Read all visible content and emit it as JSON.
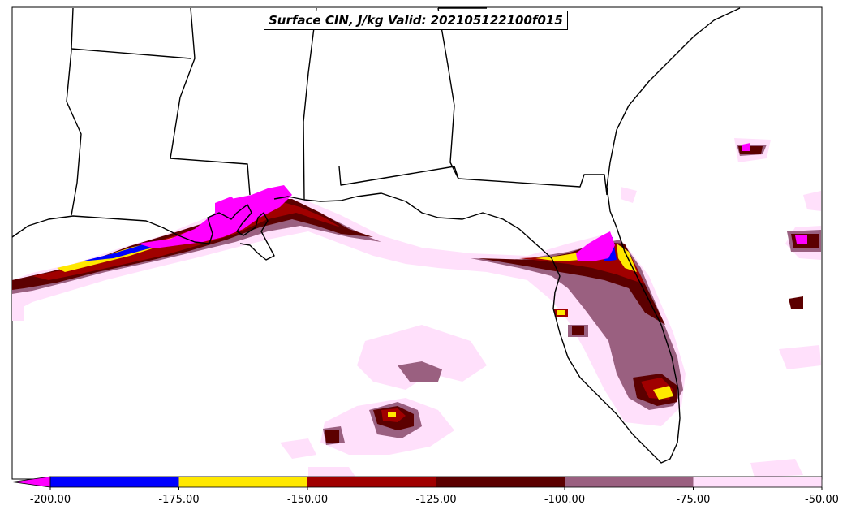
{
  "title": "Surface CIN, J/kg Valid: 202105122100f015",
  "colorbar": {
    "ticks": [
      "-200.00",
      "-175.00",
      "-150.00",
      "-125.00",
      "-100.00",
      "-75.00",
      "-50.00"
    ],
    "bins": [
      {
        "range": "<-200",
        "color": "#ff00ff"
      },
      {
        "range": "-200 to -175",
        "color": "#0000ff"
      },
      {
        "range": "-175 to -150",
        "color": "#ffe800"
      },
      {
        "range": "-150 to -125",
        "color": "#a00000"
      },
      {
        "range": "-125 to -100",
        "color": "#5c0000"
      },
      {
        "range": "-100 to -75",
        "color": "#9a6080"
      },
      {
        "range": "-75 to -50",
        "color": "#ffe0fb"
      }
    ],
    "extend": "min"
  }
}
